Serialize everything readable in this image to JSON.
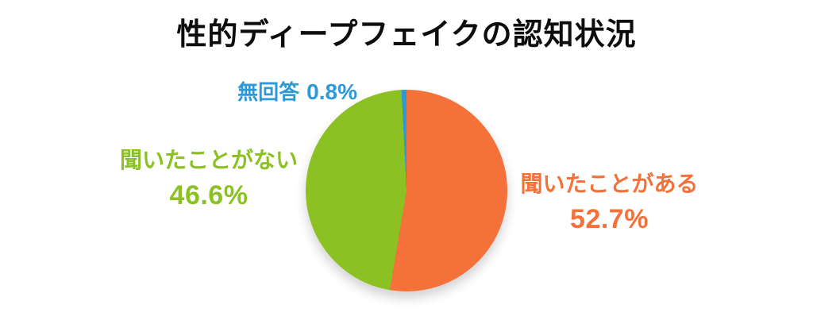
{
  "page": {
    "background": "#FFFFFF",
    "title_color": "#0D0D0D"
  },
  "chart_data": {
    "type": "pie",
    "title": "性的ディープフェイクの認知状況",
    "start_angle_deg": 0,
    "direction": "clockwise",
    "legend": "none (direct colored callout labels around pie)",
    "slices": [
      {
        "label": "聞いたことがある",
        "value": 52.7,
        "percent_label": "52.7%",
        "color": "#F4713A",
        "label_position": "right"
      },
      {
        "label": "聞いたことがない",
        "value": 46.6,
        "percent_label": "46.6%",
        "color": "#8BC122",
        "label_position": "left"
      },
      {
        "label": "無回答",
        "value": 0.8,
        "percent_label": "0.8%",
        "color": "#2D99D6",
        "label_position": "top"
      }
    ]
  }
}
